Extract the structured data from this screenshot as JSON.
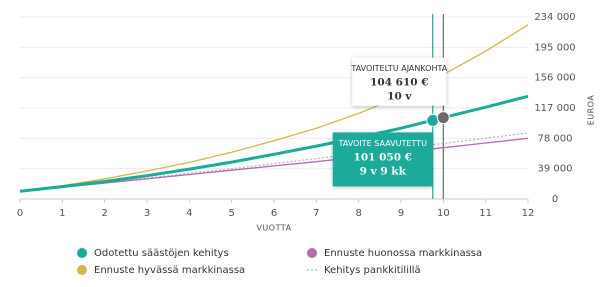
{
  "chart_data": {
    "type": "line",
    "x": [
      0,
      1,
      2,
      3,
      4,
      5,
      6,
      7,
      8,
      9,
      10,
      11,
      12
    ],
    "series": [
      {
        "name": "Ennuste hyvässä markkinassa",
        "color": "#d4b84a",
        "width": 1.3,
        "values": [
          10000,
          17000,
          26000,
          36000,
          47000,
          60000,
          75000,
          91000,
          110000,
          132000,
          160000,
          190000,
          224000
        ]
      },
      {
        "name": "Kehitys pankkitilillä",
        "color": "#b8b8b8",
        "dash": true,
        "width": 1.3,
        "values": [
          10000,
          15500,
          21000,
          27000,
          33000,
          39000,
          45500,
          52000,
          58500,
          65000,
          71500,
          78000,
          85000
        ]
      },
      {
        "name": "Ennuste huonossa markkinassa",
        "color": "#b56bb0",
        "width": 1.3,
        "values": [
          10000,
          15000,
          20500,
          26000,
          31500,
          37000,
          42500,
          48000,
          54000,
          60000,
          66000,
          72000,
          78000
        ]
      },
      {
        "name": "Odotettu säästöjen kehitys",
        "color": "#1aab9b",
        "width": 3,
        "values": [
          10000,
          16000,
          22500,
          30000,
          38500,
          47500,
          57500,
          68000,
          79000,
          91000,
          104610,
          118000,
          132000
        ]
      }
    ],
    "legend_order": [
      3,
      2,
      0,
      1
    ],
    "annotations": [
      {
        "title": "TAVOITE SAAVUTETTU",
        "x": 9.75,
        "value": 101050,
        "value_label": "101 050 €",
        "time_label": "9 v 9 kk",
        "color": "#1aab9b",
        "style": "filled"
      },
      {
        "title": "TAVOITELTU AJANKOHTA",
        "x": 10,
        "value": 104610,
        "value_label": "104 610 €",
        "time_label": "10 v",
        "color": "#6b6b6b",
        "style": "white"
      }
    ],
    "xlim": [
      0,
      12
    ],
    "xticks": [
      0,
      1,
      2,
      3,
      4,
      5,
      6,
      7,
      8,
      9,
      10,
      11,
      12
    ],
    "ylim": [
      0,
      234000
    ],
    "yticks": [
      0,
      {
        "value": 39000,
        "label": "39 000"
      },
      {
        "value": 78000,
        "label": "78 000"
      },
      {
        "value": 117000,
        "label": "117 000"
      },
      {
        "value": 156000,
        "label": "156 000"
      },
      {
        "value": 195000,
        "label": "195 000"
      },
      {
        "value": 234000,
        "label": "234 000"
      }
    ],
    "xlabel": "VUOTTA",
    "ylabel": "EUROA",
    "grid": true
  }
}
